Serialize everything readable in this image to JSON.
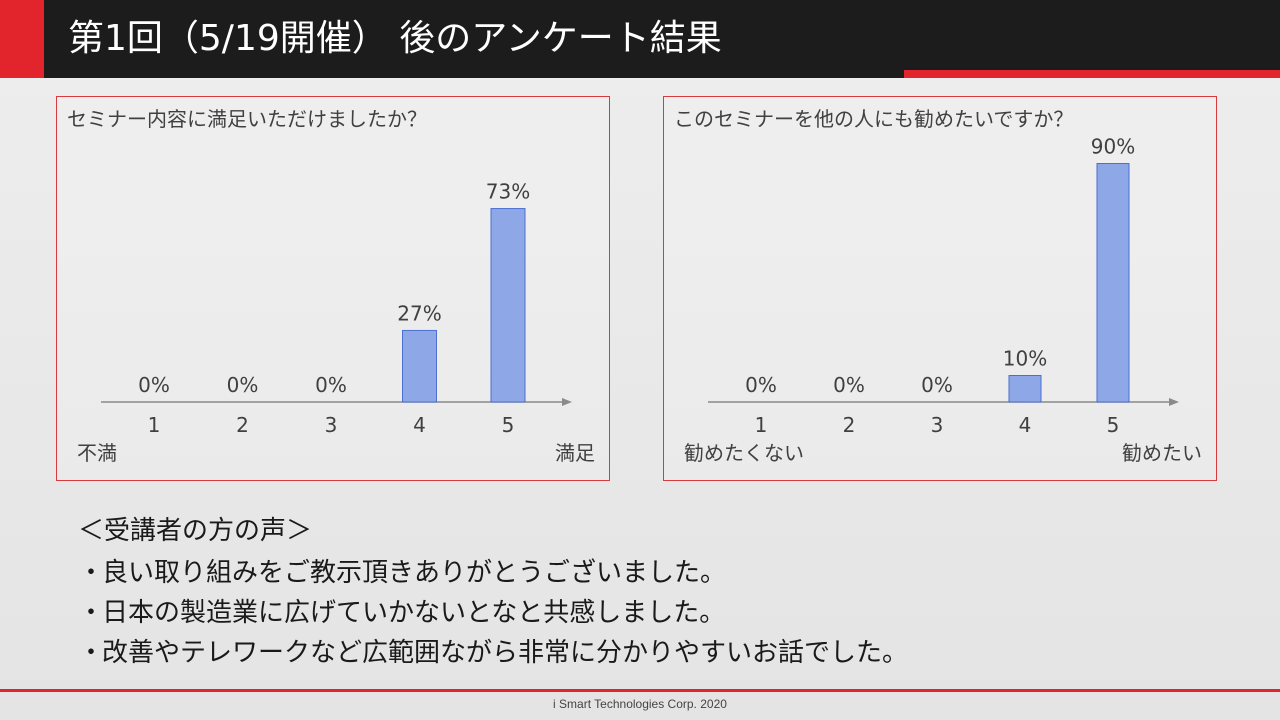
{
  "header": {
    "title": "第1回（5/19開催） 後のアンケート結果"
  },
  "chart_data": [
    {
      "type": "bar",
      "title": "セミナー内容に満足いただけましたか？",
      "categories": [
        "1",
        "2",
        "3",
        "4",
        "5"
      ],
      "values": [
        0,
        0,
        0,
        27,
        73
      ],
      "data_labels": [
        "0%",
        "0%",
        "0%",
        "27%",
        "73%"
      ],
      "ylim": [
        0,
        100
      ],
      "grid": false,
      "scale_low_label": "不満",
      "scale_high_label": "満足",
      "bar_color": "#8ea7e6"
    },
    {
      "type": "bar",
      "title": "このセミナーを他の人にも勧めたいですか？",
      "categories": [
        "1",
        "2",
        "3",
        "4",
        "5"
      ],
      "values": [
        0,
        0,
        0,
        10,
        90
      ],
      "data_labels": [
        "0%",
        "0%",
        "0%",
        "10%",
        "90%"
      ],
      "ylim": [
        0,
        100
      ],
      "grid": false,
      "scale_low_label": "勧めたくない",
      "scale_high_label": "勧めたい",
      "bar_color": "#8ea7e6"
    }
  ],
  "voices": {
    "heading": "＜受講者の方の声＞",
    "bullet": "・",
    "items": [
      "良い取り組みをご教示頂きありがとうございました。",
      "日本の製造業に広げていかないとなと共感しました。",
      "改善やテレワークなど広範囲ながら非常に分かりやすいお話でした。"
    ]
  },
  "footer": {
    "text": "i Smart Technologies Corp. 2020"
  },
  "colors": {
    "accent_red": "#e2242c",
    "title_bar": "#1c1c1c",
    "bar_fill": "#8ea7e6",
    "bar_stroke": "#4a6fd1"
  }
}
